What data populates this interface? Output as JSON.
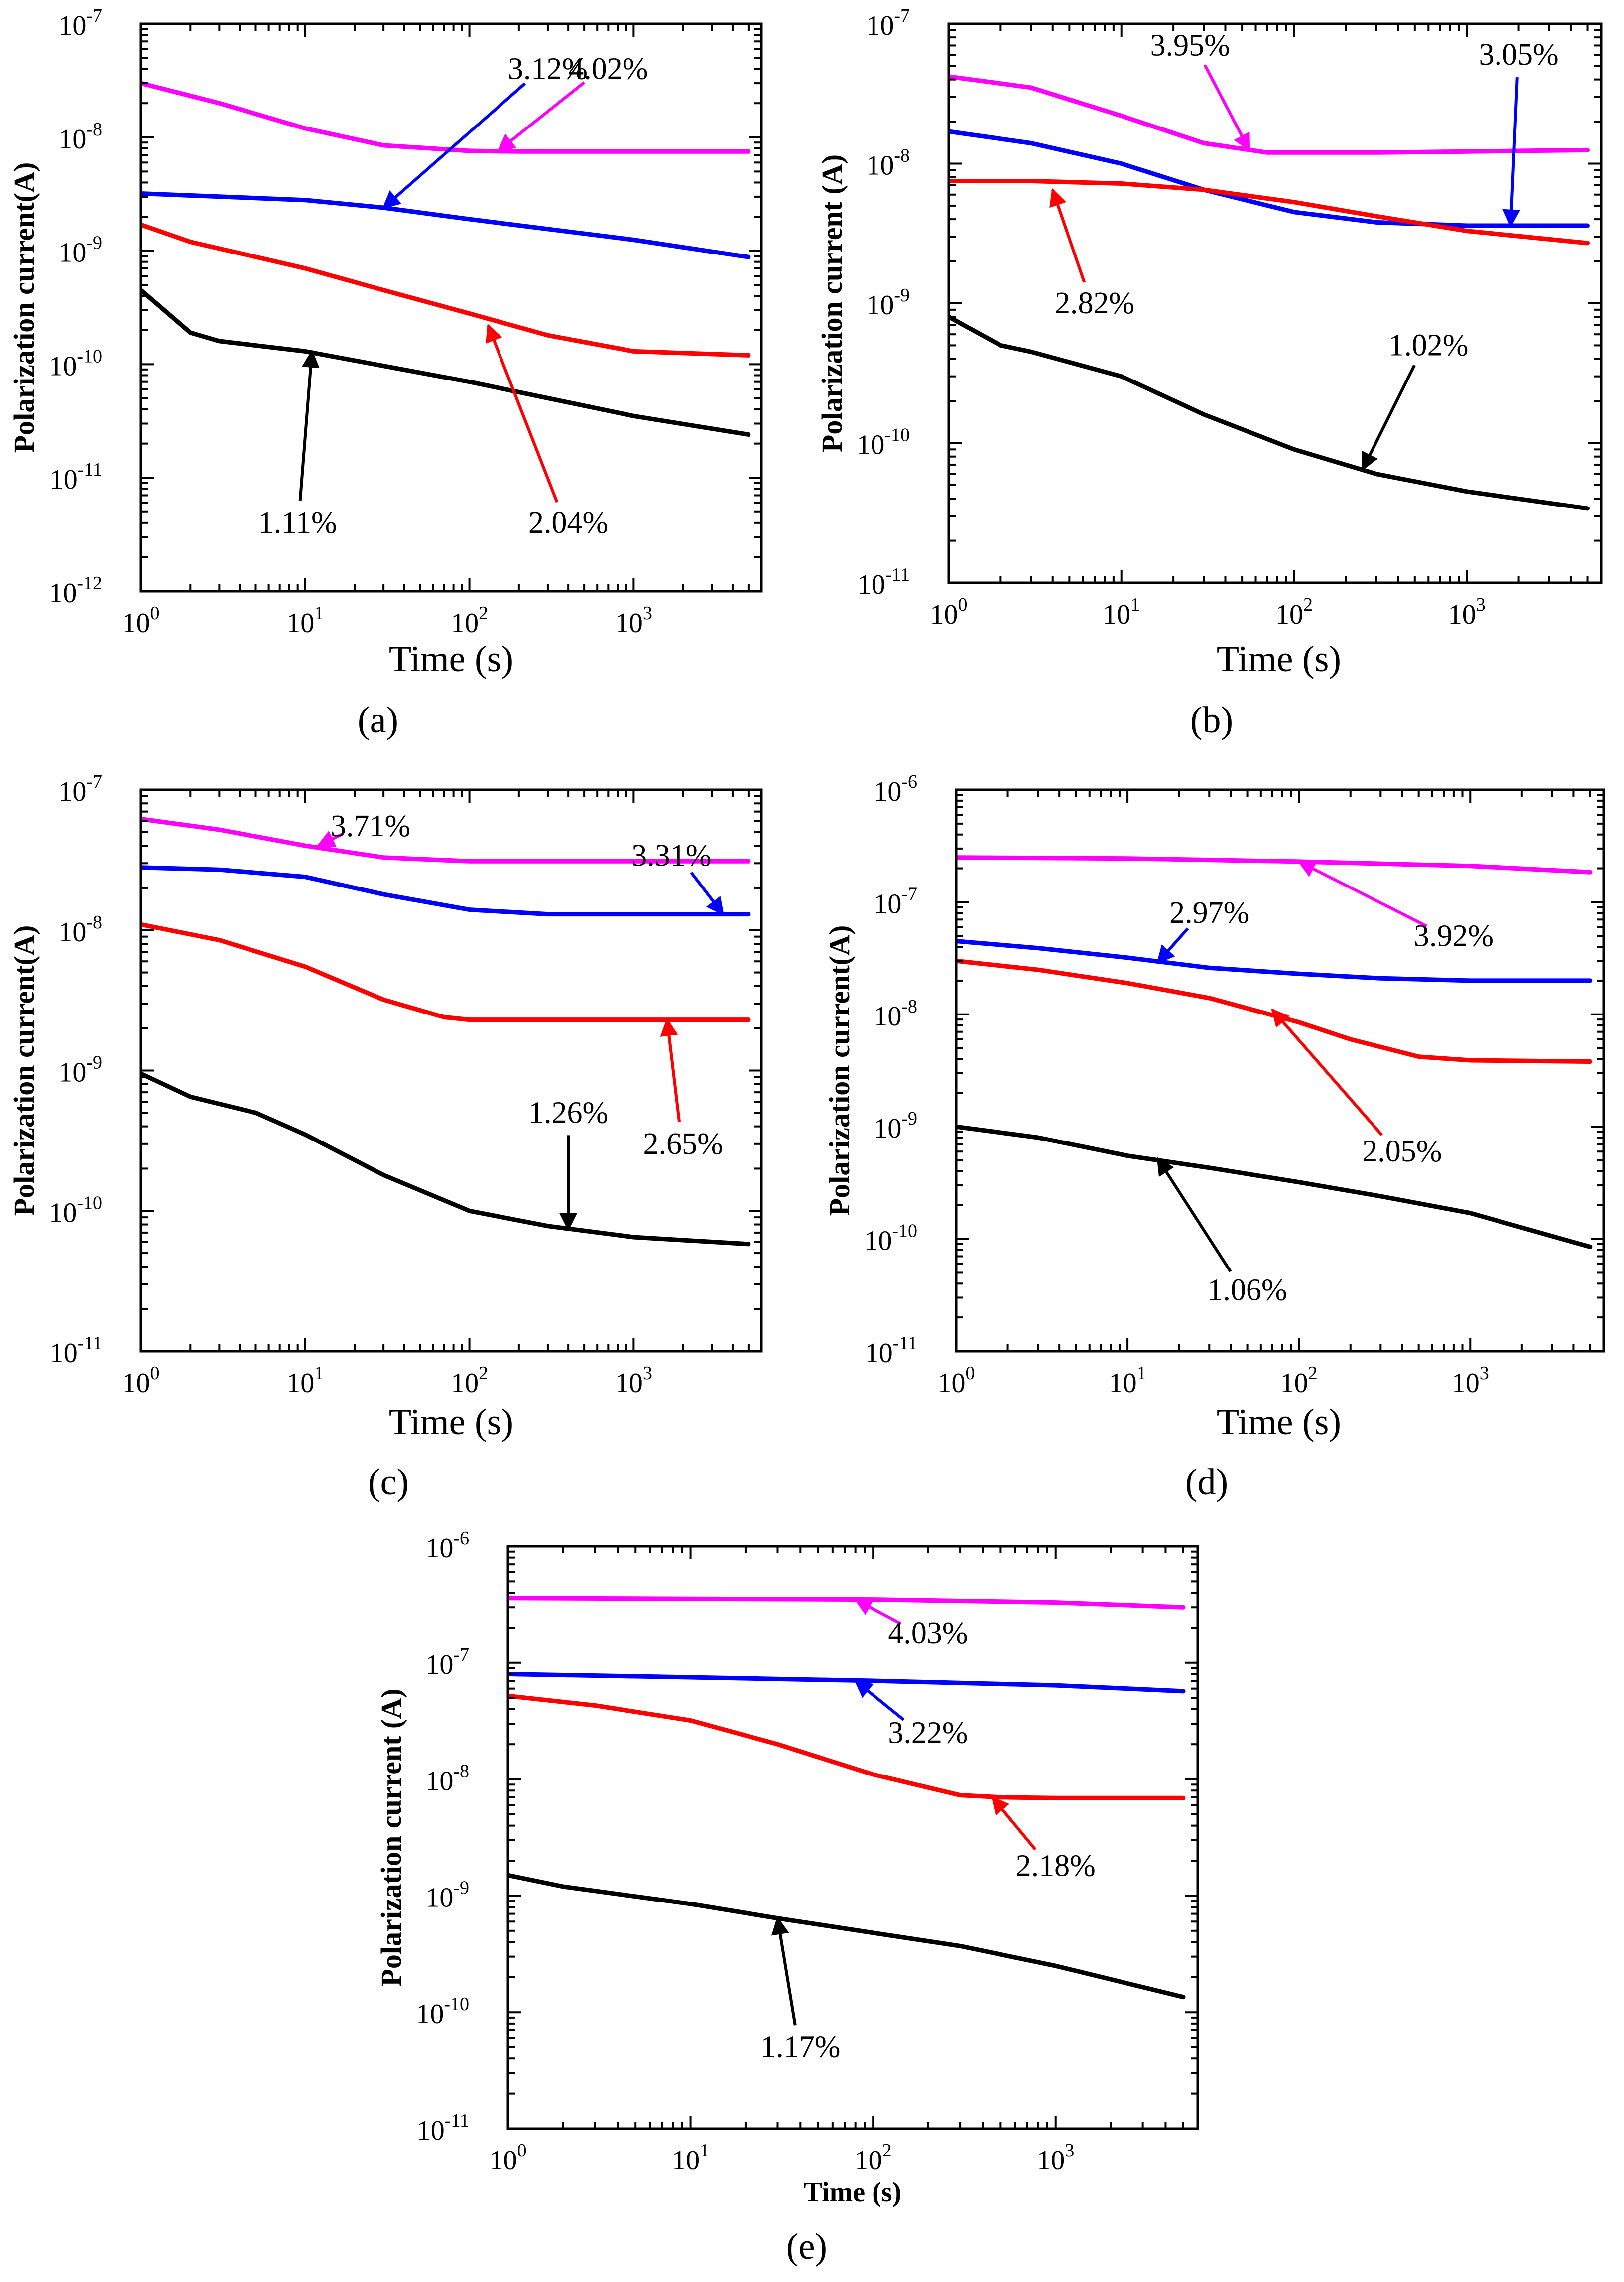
{
  "colors": {
    "magenta": "#ff00ff",
    "blue": "#0000ff",
    "red": "#ff0000",
    "black": "#000000"
  },
  "chart_data": [
    {
      "id": "a",
      "type": "line",
      "panel_label": "(a)",
      "xlabel": "Time (s)",
      "ylabel": "Polarization current(A)",
      "xscale": "log",
      "yscale": "log",
      "xlim": [
        1,
        6000
      ],
      "ylim": [
        1e-12,
        1e-07
      ],
      "xticks": [
        1,
        10,
        100,
        1000
      ],
      "yticks": [
        1e-12,
        1e-11,
        1e-10,
        1e-09,
        1e-08,
        1e-07
      ],
      "series": [
        {
          "name": "4.02%",
          "color": "#ff00ff",
          "x": [
            1,
            3,
            10,
            30,
            100,
            200,
            1000,
            5000
          ],
          "y": [
            3e-08,
            2e-08,
            1.2e-08,
            8.5e-09,
            7.6e-09,
            7.5e-09,
            7.5e-09,
            7.5e-09
          ]
        },
        {
          "name": "3.12%",
          "color": "#0000ff",
          "x": [
            1,
            10,
            30,
            100,
            1000,
            5000
          ],
          "y": [
            3.2e-09,
            2.8e-09,
            2.4e-09,
            1.9e-09,
            1.25e-09,
            8.8e-10
          ]
        },
        {
          "name": "2.04%",
          "color": "#ff0000",
          "x": [
            1,
            2,
            10,
            30,
            100,
            300,
            1000,
            5000
          ],
          "y": [
            1.7e-09,
            1.2e-09,
            7e-10,
            4.5e-10,
            2.8e-10,
            1.8e-10,
            1.3e-10,
            1.2e-10
          ]
        },
        {
          "name": "1.11%",
          "color": "#000000",
          "x": [
            1,
            2,
            3,
            10,
            100,
            1000,
            5000
          ],
          "y": [
            4.5e-10,
            1.9e-10,
            1.6e-10,
            1.3e-10,
            7e-11,
            3.5e-11,
            2.4e-11
          ]
        }
      ],
      "annotations": [
        {
          "text": "3.12%",
          "series": "3.12%",
          "point_x": 30,
          "point_y": 2.4e-09,
          "label_x": 300,
          "label_y": 4e-08
        },
        {
          "text": "4.02%",
          "series": "4.02%",
          "point_x": 150,
          "point_y": 7.6e-09,
          "label_x": 700,
          "label_y": 4e-08
        },
        {
          "text": "1.11%",
          "series": "1.11%",
          "point_x": 11,
          "point_y": 1.3e-10,
          "label_x": 9,
          "label_y": 4e-12
        },
        {
          "text": "2.04%",
          "series": "2.04%",
          "point_x": 130,
          "point_y": 2.2e-10,
          "label_x": 400,
          "label_y": 4e-12
        }
      ]
    },
    {
      "id": "b",
      "type": "line",
      "panel_label": "(b)",
      "xlabel": "Time (s)",
      "ylabel": "Polarization current (A)",
      "xscale": "log",
      "yscale": "log",
      "xlim": [
        1,
        6000
      ],
      "ylim": [
        1e-11,
        1e-07
      ],
      "xticks": [
        1,
        10,
        100,
        1000
      ],
      "yticks": [
        1e-11,
        1e-10,
        1e-09,
        1e-08,
        1e-07
      ],
      "series": [
        {
          "name": "3.95%",
          "color": "#ff00ff",
          "x": [
            1,
            3,
            10,
            30,
            70,
            300,
            1000,
            5000
          ],
          "y": [
            4.2e-08,
            3.5e-08,
            2.2e-08,
            1.4e-08,
            1.2e-08,
            1.2e-08,
            1.22e-08,
            1.25e-08
          ]
        },
        {
          "name": "3.05%",
          "color": "#0000ff",
          "x": [
            1,
            3,
            10,
            30,
            100,
            300,
            1000,
            5000
          ],
          "y": [
            1.7e-08,
            1.4e-08,
            1e-08,
            6.5e-09,
            4.5e-09,
            3.8e-09,
            3.6e-09,
            3.6e-09
          ]
        },
        {
          "name": "2.82%",
          "color": "#ff0000",
          "x": [
            1,
            3,
            10,
            30,
            100,
            300,
            1000,
            5000
          ],
          "y": [
            7.5e-09,
            7.5e-09,
            7.2e-09,
            6.5e-09,
            5.3e-09,
            4.2e-09,
            3.3e-09,
            2.7e-09
          ]
        },
        {
          "name": "1.02%",
          "color": "#000000",
          "x": [
            1,
            2,
            3,
            10,
            30,
            100,
            300,
            1000,
            5000
          ],
          "y": [
            8e-10,
            5e-10,
            4.5e-10,
            3e-10,
            1.6e-10,
            9e-11,
            6e-11,
            4.5e-11,
            3.4e-11
          ]
        }
      ],
      "annotations": [
        {
          "text": "3.95%",
          "series": "3.95%",
          "point_x": 55,
          "point_y": 1.25e-08,
          "label_x": 25,
          "label_y": 7e-08
        },
        {
          "text": "3.05%",
          "series": "3.05%",
          "point_x": 1800,
          "point_y": 3.6e-09,
          "label_x": 2000,
          "label_y": 6e-08
        },
        {
          "text": "2.82%",
          "series": "2.82%",
          "point_x": 4,
          "point_y": 6.5e-09,
          "label_x": 7,
          "label_y": 1e-09
        },
        {
          "text": "1.02%",
          "series": "1.02%",
          "point_x": 250,
          "point_y": 6.5e-11,
          "label_x": 600,
          "label_y": 5e-10
        }
      ]
    },
    {
      "id": "c",
      "type": "line",
      "panel_label": "(c)",
      "xlabel": "Time (s)",
      "ylabel": "Polarization current(A)",
      "xscale": "log",
      "yscale": "log",
      "xlim": [
        1,
        6000
      ],
      "ylim": [
        1e-11,
        1e-07
      ],
      "xticks": [
        1,
        10,
        100,
        1000
      ],
      "yticks": [
        1e-11,
        1e-10,
        1e-09,
        1e-08,
        1e-07
      ],
      "series": [
        {
          "name": "3.71%",
          "color": "#ff00ff",
          "x": [
            1,
            3,
            10,
            30,
            100,
            300,
            1000,
            5000
          ],
          "y": [
            6.2e-08,
            5.2e-08,
            4e-08,
            3.3e-08,
            3.1e-08,
            3.1e-08,
            3.1e-08,
            3.1e-08
          ]
        },
        {
          "name": "3.31%",
          "color": "#0000ff",
          "x": [
            1,
            3,
            10,
            30,
            100,
            300,
            1000,
            5000
          ],
          "y": [
            2.8e-08,
            2.7e-08,
            2.4e-08,
            1.8e-08,
            1.4e-08,
            1.3e-08,
            1.3e-08,
            1.3e-08
          ]
        },
        {
          "name": "2.65%",
          "color": "#ff0000",
          "x": [
            1,
            3,
            10,
            30,
            70,
            100,
            300,
            1000,
            5000
          ],
          "y": [
            1.1e-08,
            8.5e-09,
            5.5e-09,
            3.2e-09,
            2.4e-09,
            2.3e-09,
            2.3e-09,
            2.3e-09,
            2.3e-09
          ]
        },
        {
          "name": "1.26%",
          "color": "#000000",
          "x": [
            1,
            2,
            5,
            10,
            30,
            100,
            300,
            1000,
            5000
          ],
          "y": [
            9.5e-10,
            6.5e-10,
            5e-10,
            3.5e-10,
            1.8e-10,
            1e-10,
            7.8e-11,
            6.5e-11,
            5.8e-11
          ]
        }
      ],
      "annotations": [
        {
          "text": "3.71%",
          "series": "3.71%",
          "point_x": 12,
          "point_y": 4e-08,
          "label_x": 25,
          "label_y": 5.5e-08
        },
        {
          "text": "3.31%",
          "series": "3.31%",
          "point_x": 3500,
          "point_y": 1.3e-08,
          "label_x": 1700,
          "label_y": 3.4e-08
        },
        {
          "text": "2.65%",
          "series": "2.65%",
          "point_x": 1600,
          "point_y": 2.3e-09,
          "label_x": 2000,
          "label_y": 3e-10
        },
        {
          "text": "1.26%",
          "series": "1.26%",
          "point_x": 400,
          "point_y": 7.4e-11,
          "label_x": 400,
          "label_y": 5e-10
        }
      ]
    },
    {
      "id": "d",
      "type": "line",
      "panel_label": "(d)",
      "xlabel": "Time (s)",
      "ylabel": "Polarization current(A)",
      "xscale": "log",
      "yscale": "log",
      "xlim": [
        1,
        6000
      ],
      "ylim": [
        1e-11,
        1e-06
      ],
      "xticks": [
        1,
        10,
        100,
        1000
      ],
      "yticks": [
        1e-11,
        1e-10,
        1e-09,
        1e-08,
        1e-07,
        1e-06
      ],
      "series": [
        {
          "name": "3.92%",
          "color": "#ff00ff",
          "x": [
            1,
            10,
            100,
            1000,
            5000
          ],
          "y": [
            2.5e-07,
            2.45e-07,
            2.3e-07,
            2.1e-07,
            1.85e-07
          ]
        },
        {
          "name": "2.97%",
          "color": "#0000ff",
          "x": [
            1,
            3,
            10,
            30,
            100,
            300,
            1000,
            5000
          ],
          "y": [
            4.5e-08,
            3.9e-08,
            3.2e-08,
            2.6e-08,
            2.3e-08,
            2.1e-08,
            2e-08,
            2e-08
          ]
        },
        {
          "name": "2.05%",
          "color": "#ff0000",
          "x": [
            1,
            3,
            10,
            30,
            100,
            200,
            500,
            1000,
            5000
          ],
          "y": [
            3e-08,
            2.5e-08,
            1.9e-08,
            1.4e-08,
            8.5e-09,
            6e-09,
            4.2e-09,
            3.9e-09,
            3.8e-09
          ]
        },
        {
          "name": "1.06%",
          "color": "#000000",
          "x": [
            1,
            3,
            10,
            30,
            100,
            300,
            1000,
            5000
          ],
          "y": [
            1e-09,
            8e-10,
            5.5e-10,
            4.3e-10,
            3.2e-10,
            2.4e-10,
            1.7e-10,
            8.5e-11
          ]
        }
      ],
      "annotations": [
        {
          "text": "2.97%",
          "series": "2.97%",
          "point_x": 15,
          "point_y": 2.9e-08,
          "label_x": 30,
          "label_y": 8e-08
        },
        {
          "text": "3.92%",
          "series": "3.92%",
          "point_x": 100,
          "point_y": 2.3e-07,
          "label_x": 800,
          "label_y": 5e-08
        },
        {
          "text": "2.05%",
          "series": "2.05%",
          "point_x": 70,
          "point_y": 1.1e-08,
          "label_x": 400,
          "label_y": 6e-10
        },
        {
          "text": "1.06%",
          "series": "1.06%",
          "point_x": 15,
          "point_y": 5.2e-10,
          "label_x": 50,
          "label_y": 3.5e-11
        }
      ]
    },
    {
      "id": "e",
      "type": "line",
      "panel_label": "(e)",
      "xlabel": "Time (s)",
      "ylabel": "Polarization current (A)",
      "xscale": "log",
      "yscale": "log",
      "xlim": [
        1,
        6000
      ],
      "ylim": [
        1e-11,
        1e-06
      ],
      "xticks": [
        1,
        10,
        100,
        1000
      ],
      "yticks": [
        1e-11,
        1e-10,
        1e-09,
        1e-08,
        1e-07,
        1e-06
      ],
      "series": [
        {
          "name": "4.03%",
          "color": "#ff00ff",
          "x": [
            1,
            10,
            100,
            1000,
            5000
          ],
          "y": [
            3.6e-07,
            3.55e-07,
            3.5e-07,
            3.3e-07,
            3e-07
          ]
        },
        {
          "name": "3.22%",
          "color": "#0000ff",
          "x": [
            1,
            10,
            100,
            1000,
            5000
          ],
          "y": [
            8e-08,
            7.5e-08,
            7e-08,
            6.4e-08,
            5.7e-08
          ]
        },
        {
          "name": "2.18%",
          "color": "#ff0000",
          "x": [
            1,
            3,
            10,
            30,
            100,
            300,
            500,
            1000,
            5000
          ],
          "y": [
            5.2e-08,
            4.3e-08,
            3.2e-08,
            2e-08,
            1.1e-08,
            7.3e-09,
            7e-09,
            6.9e-09,
            6.9e-09
          ]
        },
        {
          "name": "1.17%",
          "color": "#000000",
          "x": [
            1,
            2,
            10,
            30,
            100,
            300,
            1000,
            5000
          ],
          "y": [
            1.5e-09,
            1.2e-09,
            8.5e-10,
            6.4e-10,
            4.8e-10,
            3.7e-10,
            2.5e-10,
            1.35e-10
          ]
        }
      ],
      "annotations": [
        {
          "text": "4.03%",
          "series": "4.03%",
          "point_x": 80,
          "point_y": 3.5e-07,
          "label_x": 200,
          "label_y": 1.8e-07
        },
        {
          "text": "3.22%",
          "series": "3.22%",
          "point_x": 80,
          "point_y": 7e-08,
          "label_x": 200,
          "label_y": 2.5e-08
        },
        {
          "text": "2.18%",
          "series": "2.18%",
          "point_x": 450,
          "point_y": 7e-09,
          "label_x": 1000,
          "label_y": 1.8e-09
        },
        {
          "text": "1.17%",
          "series": "1.17%",
          "point_x": 30,
          "point_y": 6.4e-10,
          "label_x": 40,
          "label_y": 5e-11
        }
      ]
    }
  ]
}
